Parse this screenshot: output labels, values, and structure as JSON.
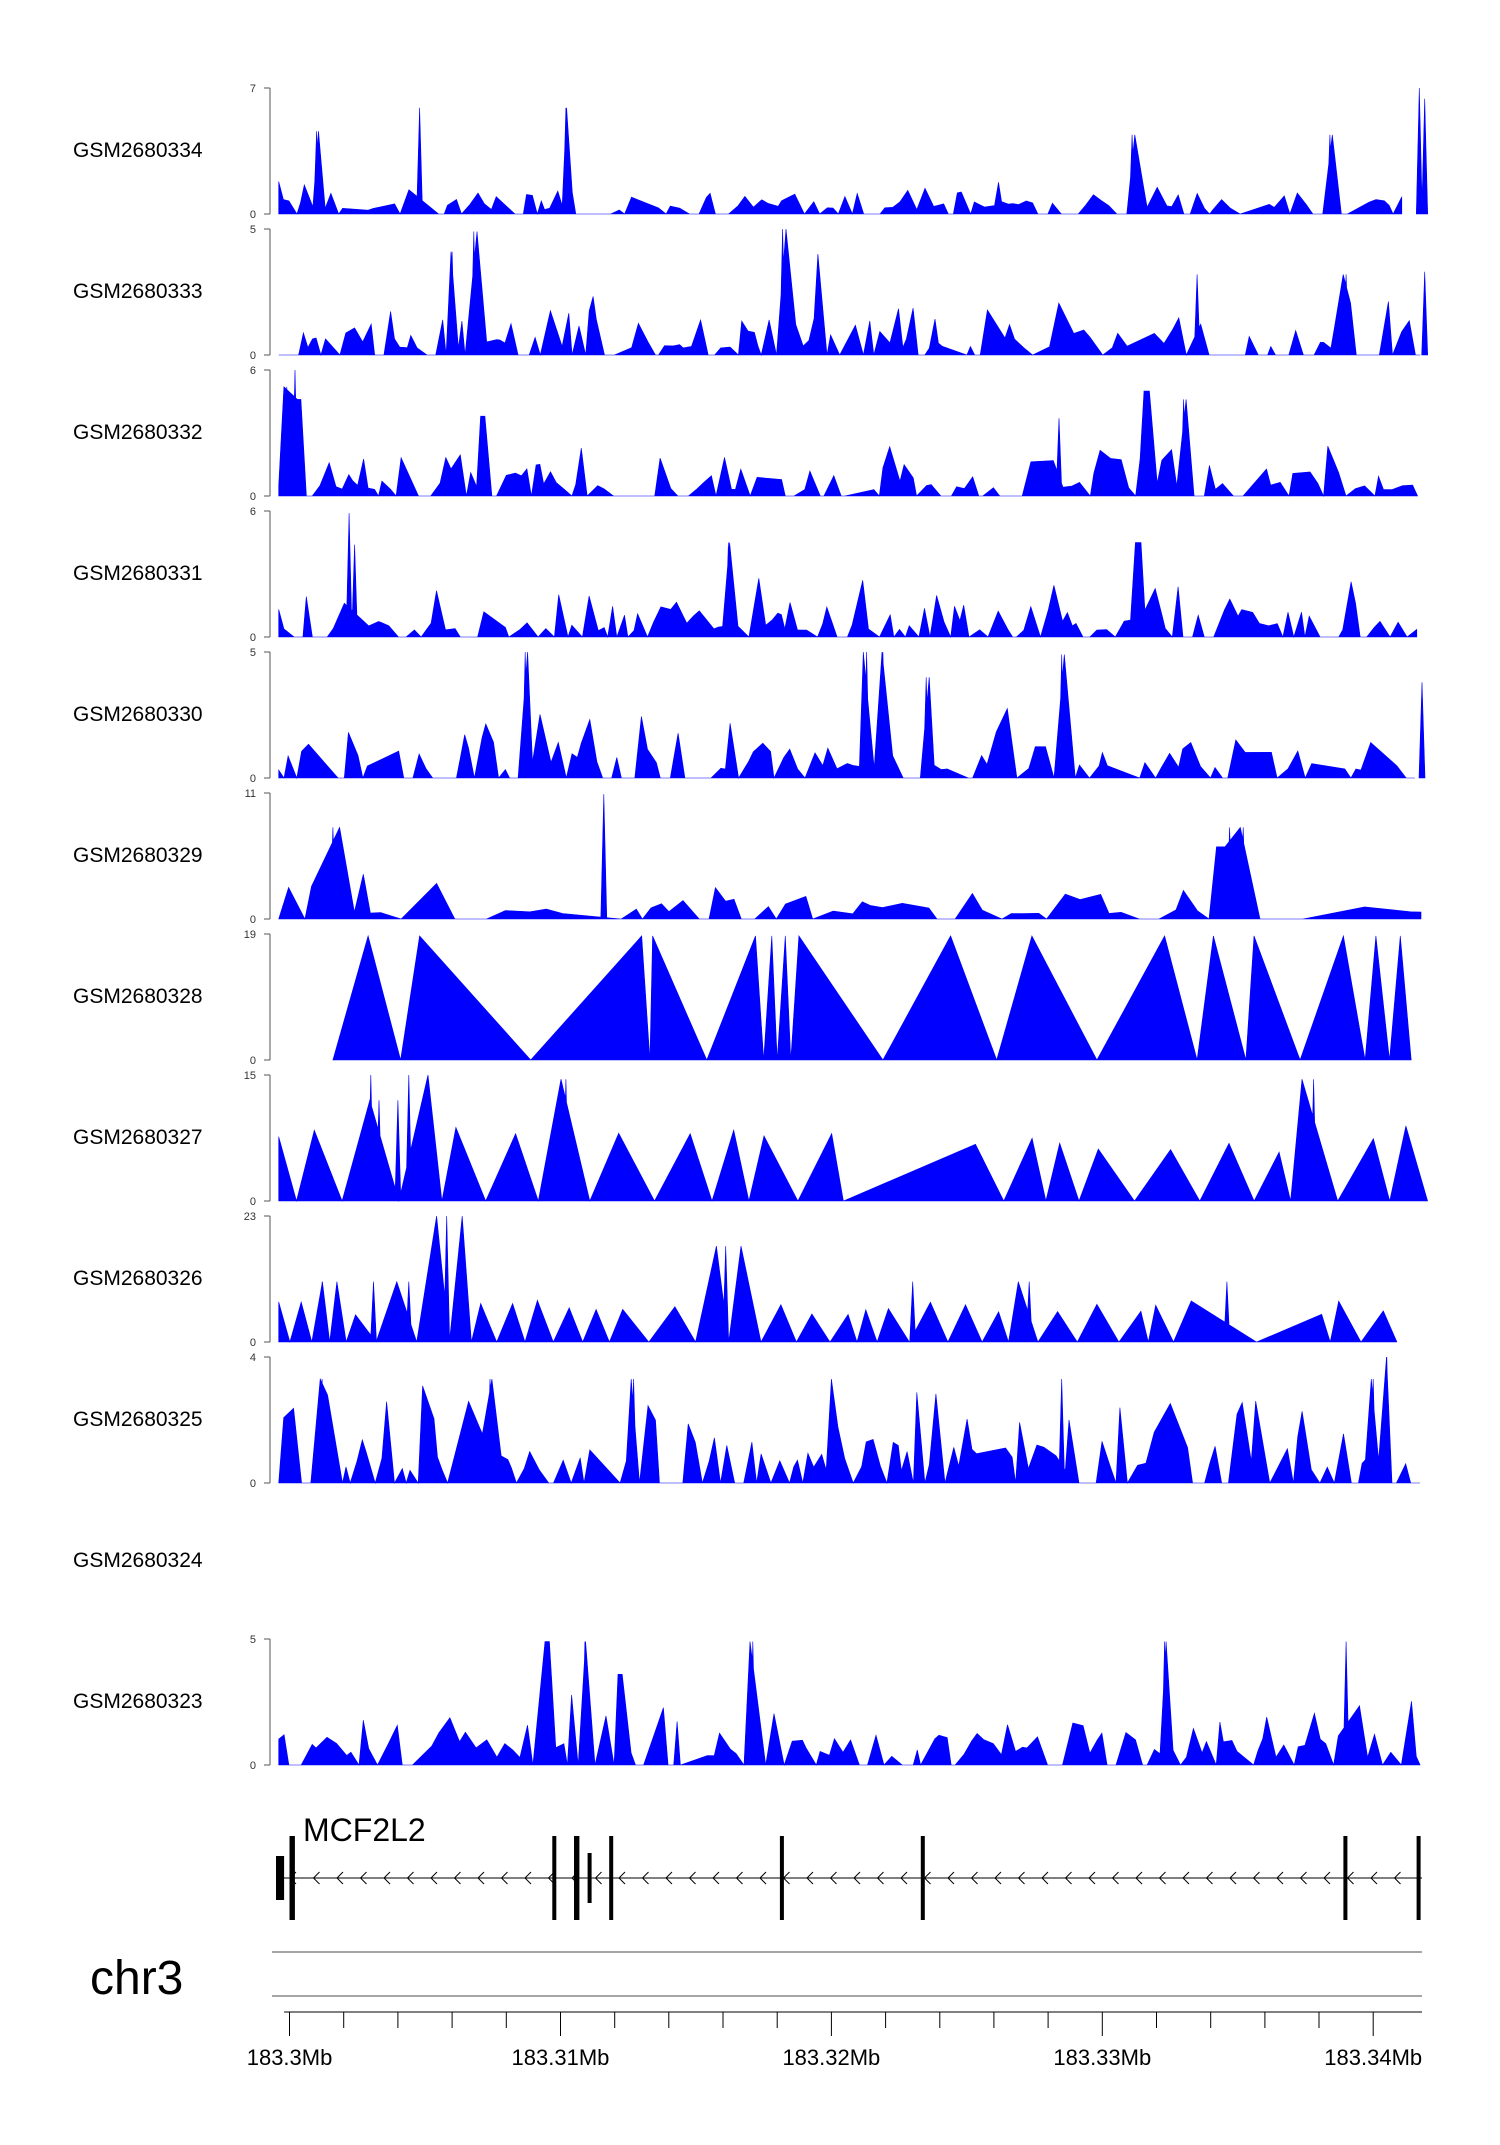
{
  "chart_data": {
    "type": "area",
    "title": "",
    "xlabel": "",
    "ylabel": "",
    "region": {
      "chromosome": "chr3",
      "xlim_mb": [
        183.2995,
        183.3418
      ]
    },
    "x_axis": {
      "ticks": [
        "183.3Mb",
        "183.31Mb",
        "183.32Mb",
        "183.33Mb",
        "183.34Mb"
      ],
      "tick_values_mb": [
        183.3,
        183.31,
        183.32,
        183.33,
        183.34
      ],
      "minor_step_mb": 0.002
    },
    "fill_color": "#0000ff",
    "series": [
      {
        "name": "GSM2680334",
        "ymax": 7,
        "seed": 11,
        "spacing": 0.00022,
        "base": 0.7,
        "peaks": [
          [
            183.301,
            4.6
          ],
          [
            183.3048,
            5.9
          ],
          [
            183.3102,
            5.9
          ],
          [
            183.3311,
            4.4
          ],
          [
            183.3384,
            4.4
          ],
          [
            183.3417,
            7.0
          ],
          [
            183.3419,
            6.4
          ]
        ]
      },
      {
        "name": "GSM2680333",
        "ymax": 5,
        "seed": 23,
        "spacing": 0.00022,
        "base": 0.9,
        "peaks": [
          [
            183.306,
            4.1
          ],
          [
            183.3068,
            4.9
          ],
          [
            183.3182,
            5.0
          ],
          [
            183.3195,
            4.0
          ],
          [
            183.3335,
            3.2
          ],
          [
            183.339,
            3.2
          ],
          [
            183.3419,
            3.3
          ]
        ]
      },
      {
        "name": "GSM2680332",
        "ymax": 6,
        "seed": 37,
        "spacing": 0.00024,
        "base": 1.0,
        "peaks": [
          [
            183.2999,
            5.2
          ],
          [
            183.3002,
            6.0
          ],
          [
            183.3004,
            4.6
          ],
          [
            183.3071,
            3.8
          ],
          [
            183.3284,
            3.7
          ],
          [
            183.3316,
            5.0
          ],
          [
            183.333,
            4.6
          ]
        ]
      },
      {
        "name": "GSM2680331",
        "ymax": 6,
        "seed": 41,
        "spacing": 0.00024,
        "base": 1.0,
        "peaks": [
          [
            183.3022,
            5.9
          ],
          [
            183.3162,
            4.5
          ],
          [
            183.3313,
            4.5
          ],
          [
            183.3024,
            4.4
          ]
        ]
      },
      {
        "name": "GSM2680330",
        "ymax": 5,
        "seed": 53,
        "spacing": 0.00024,
        "base": 1.0,
        "peaks": [
          [
            183.3087,
            5.0
          ],
          [
            183.3213,
            5.0
          ],
          [
            183.3219,
            5.0
          ],
          [
            183.3285,
            4.9
          ],
          [
            183.3418,
            3.8
          ],
          [
            183.3235,
            4.0
          ]
        ]
      },
      {
        "name": "GSM2680329",
        "ymax": 11,
        "seed": 67,
        "spacing": 0.00045,
        "base": 1.5,
        "peaks": [
          [
            183.3016,
            8.0
          ],
          [
            183.3116,
            10.9
          ],
          [
            183.3347,
            8.0
          ],
          [
            183.3352,
            8.0
          ],
          [
            183.3344,
            6.3
          ]
        ]
      },
      {
        "name": "GSM2680328",
        "ymax": 19,
        "triangles": [
          [
            183.3016,
            183.3029,
            183.3041
          ],
          [
            183.3041,
            183.3048,
            183.3089
          ],
          [
            183.3089,
            183.313,
            183.3133
          ],
          [
            183.3133,
            183.3134,
            183.3154
          ],
          [
            183.3154,
            183.3172,
            183.3175
          ],
          [
            183.3175,
            183.3178,
            183.318
          ],
          [
            183.318,
            183.3183,
            183.3185
          ],
          [
            183.3185,
            183.3188,
            183.3219
          ],
          [
            183.3219,
            183.3244,
            183.3261
          ],
          [
            183.3261,
            183.3274,
            183.3298
          ],
          [
            183.3298,
            183.3323,
            183.3335
          ],
          [
            183.3335,
            183.3341,
            183.3353
          ],
          [
            183.3353,
            183.3356,
            183.3373
          ],
          [
            183.3373,
            183.3389,
            183.3397
          ],
          [
            183.3397,
            183.3401,
            183.3406
          ],
          [
            183.3406,
            183.341,
            183.3414
          ]
        ]
      },
      {
        "name": "GSM2680327",
        "ymax": 15,
        "seed": 83,
        "spacing": 0.0016,
        "base": 7.2,
        "peaks": [
          [
            183.303,
            15.0
          ],
          [
            183.3044,
            15.0
          ],
          [
            183.3102,
            14.5
          ],
          [
            183.3378,
            14.5
          ],
          [
            183.3033,
            12.0
          ],
          [
            183.304,
            12.0
          ]
        ],
        "extra_gaps": [
          [
            183.3201,
            183.3235
          ]
        ]
      },
      {
        "name": "GSM2680326",
        "ymax": 23,
        "seed": 97,
        "spacing": 0.001,
        "base": 6.0,
        "peaks": [
          [
            183.3012,
            11.0
          ],
          [
            183.3058,
            23.0
          ],
          [
            183.3161,
            17.5
          ],
          [
            183.323,
            11.0
          ],
          [
            183.3273,
            11.0
          ],
          [
            183.3346,
            11.0
          ],
          [
            183.3031,
            11.0
          ],
          [
            183.3044,
            11.0
          ]
        ],
        "end": 183.341
      },
      {
        "name": "GSM2680325",
        "ymax": 4,
        "seed": 101,
        "spacing": 0.00022,
        "base": 1.3,
        "peaks": [
          [
            183.3012,
            3.3
          ],
          [
            183.3074,
            3.3
          ],
          [
            183.3127,
            3.3
          ],
          [
            183.32,
            3.3
          ],
          [
            183.3285,
            3.3
          ],
          [
            183.34,
            3.3
          ],
          [
            183.3405,
            4.0
          ]
        ]
      },
      {
        "name": "GSM2680324",
        "ymax": 0,
        "empty": true
      },
      {
        "name": "GSM2680323",
        "ymax": 5,
        "seed": 113,
        "spacing": 0.00024,
        "base": 1.0,
        "peaks": [
          [
            183.3095,
            4.9
          ],
          [
            183.3109,
            4.9
          ],
          [
            183.3171,
            4.9
          ],
          [
            183.3323,
            4.9
          ],
          [
            183.339,
            4.9
          ],
          [
            183.3122,
            3.6
          ]
        ]
      }
    ],
    "gene": {
      "name": "MCF2L2",
      "strand": "-",
      "start_mb": 183.2995,
      "end_mb": 183.3418,
      "exons_mb": [
        [
          183.2995,
          183.2998
        ],
        [
          183.3,
          183.3002
        ],
        [
          183.3097,
          183.3098
        ],
        [
          183.3105,
          183.3107
        ],
        [
          183.311,
          183.3111
        ],
        [
          183.3118,
          183.3119
        ],
        [
          183.3181,
          183.3182
        ],
        [
          183.3233,
          183.3234
        ],
        [
          183.3389,
          183.339
        ],
        [
          183.3416,
          183.3417
        ]
      ]
    }
  }
}
